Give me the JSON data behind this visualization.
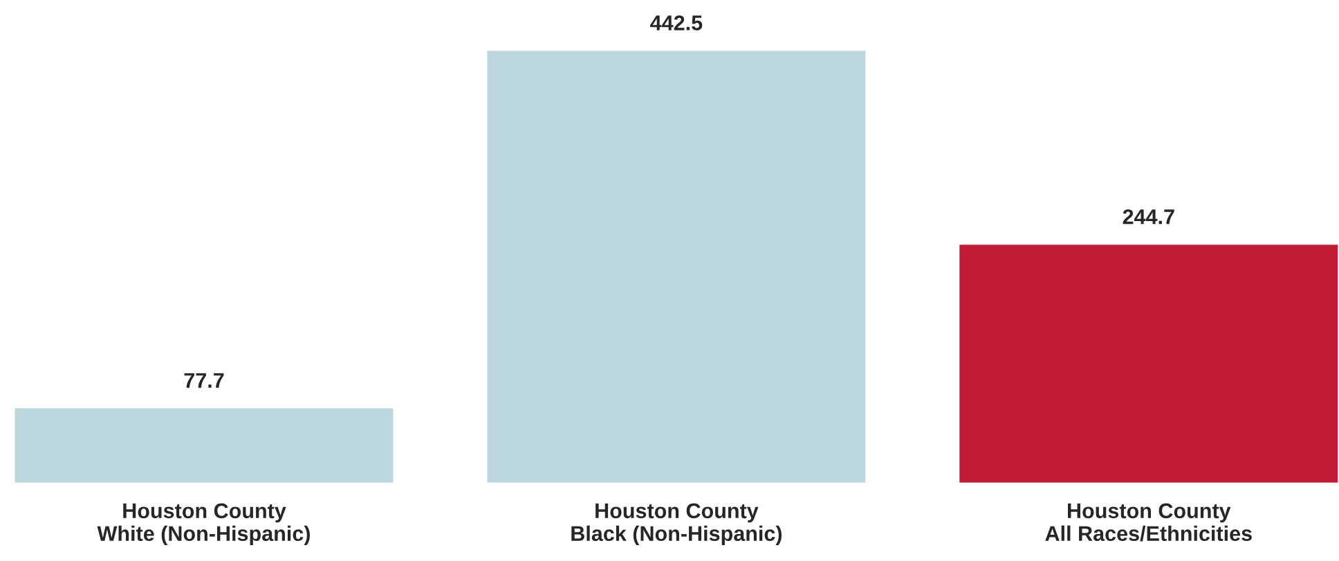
{
  "chart_data": {
    "type": "bar",
    "categories": [
      "Houston County\nWhite (Non-Hispanic)",
      "Houston County\nBlack (Non-Hispanic)",
      "Houston County\nAll Races/Ethnicities"
    ],
    "values": [
      77.7,
      442.5,
      244.7
    ],
    "colors": [
      "#bcd8de",
      "#bcd8de",
      "#c01c36"
    ],
    "data_labels": true,
    "grid": false
  }
}
